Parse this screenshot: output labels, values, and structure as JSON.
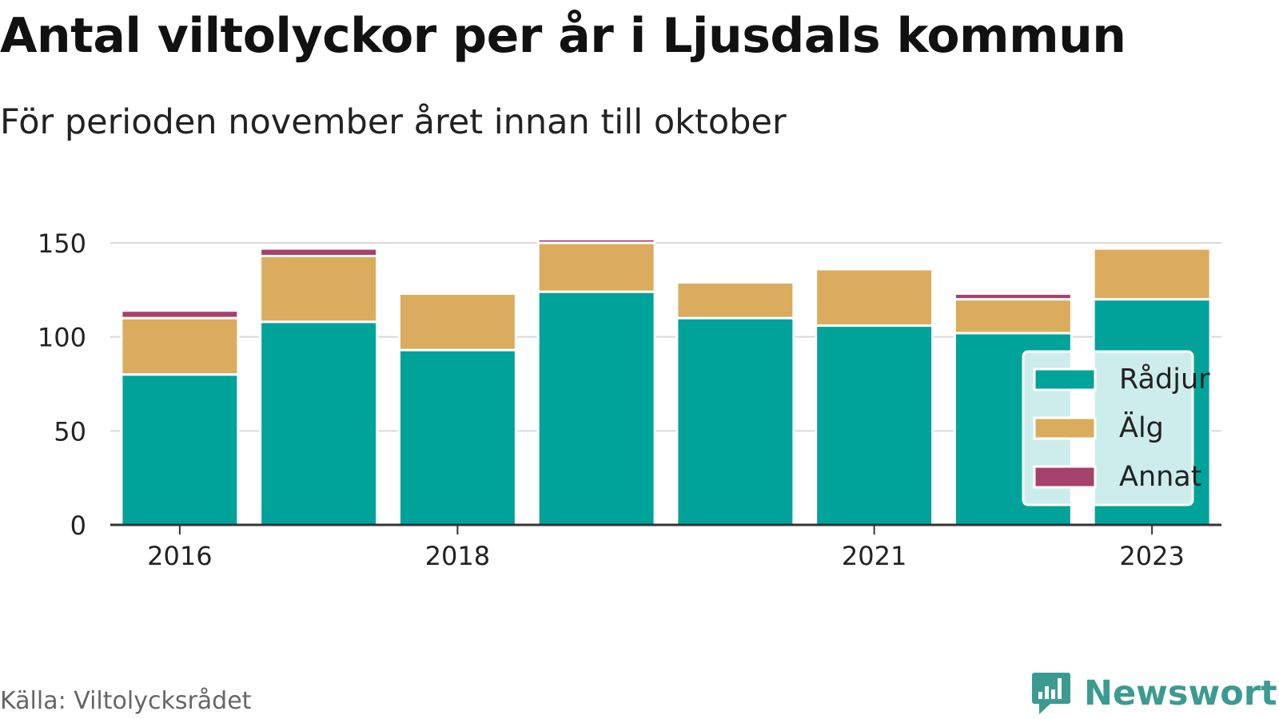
{
  "title": "Antal viltolyckor per år i Ljusdals kommun",
  "subtitle": "För perioden november året innan till oktober",
  "source": "Källa: Viltolycksrådet",
  "brand": {
    "name": "Newsworthy",
    "icon": "newsworthy-chat-bars-logo",
    "color": "#3b9b90"
  },
  "chart_data": {
    "type": "bar",
    "stacked": true,
    "categories": [
      "2016",
      "2017",
      "2018",
      "2019",
      "2020",
      "2021",
      "2022",
      "2023"
    ],
    "x_tick_labels": [
      "2016",
      "2018",
      "2021",
      "2023"
    ],
    "y_ticks": [
      0,
      50,
      100,
      150
    ],
    "ylim": [
      0,
      155
    ],
    "grid": true,
    "legend_position": "right",
    "series": [
      {
        "name": "Rådjur",
        "color": "#00a39a",
        "values": [
          80,
          108,
          93,
          124,
          110,
          106,
          102,
          120
        ]
      },
      {
        "name": "Älg",
        "color": "#dbac5d",
        "values": [
          30,
          35,
          30,
          26,
          19,
          30,
          18,
          27
        ]
      },
      {
        "name": "Annat",
        "color": "#a6416c",
        "values": [
          4,
          4,
          0,
          2,
          0,
          0,
          3,
          0
        ]
      }
    ]
  }
}
